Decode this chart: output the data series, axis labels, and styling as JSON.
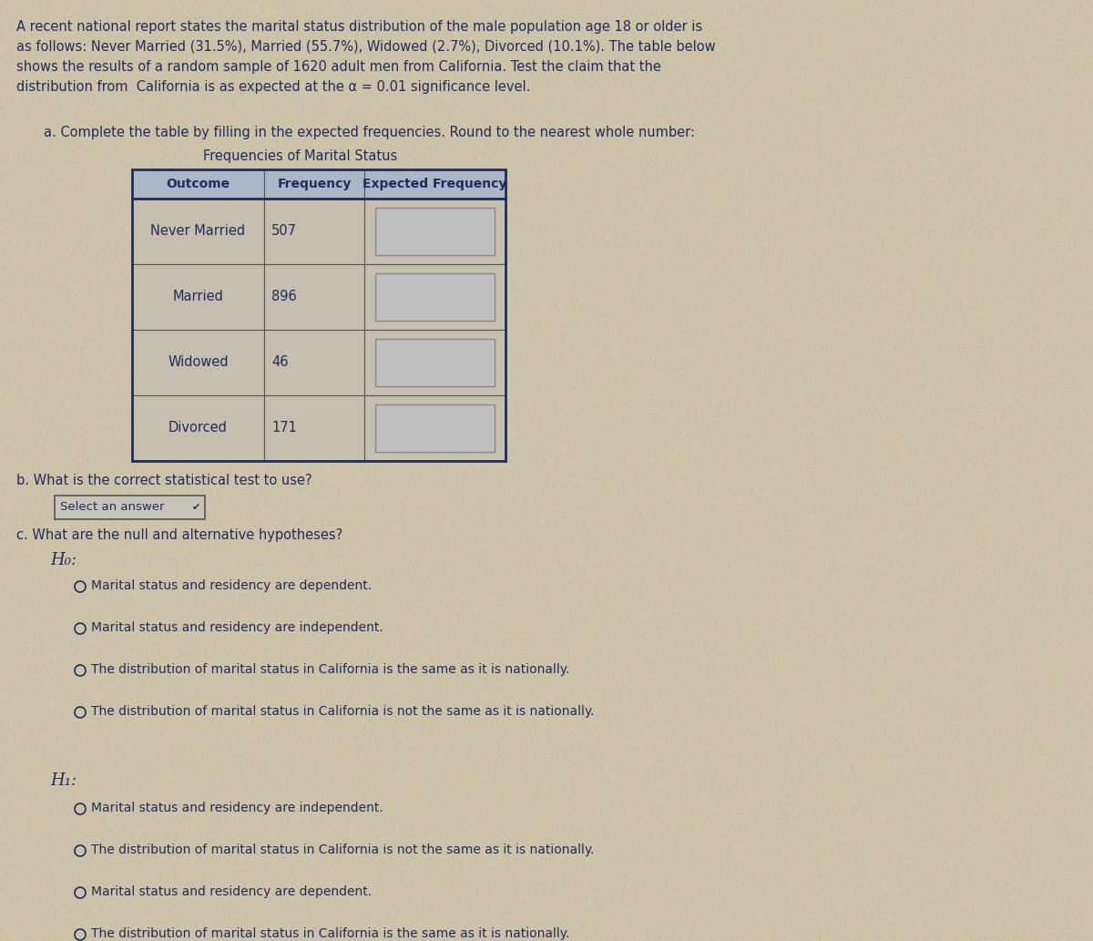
{
  "bg_color": "#cdc3aa",
  "text_color": "#1e2d5a",
  "intro_text_lines": [
    "A recent national report states the marital status distribution of the male population age 18 or older is",
    "as follows: Never Married (31.5%), Married (55.7%), Widowed (2.7%), Divorced (10.1%). The table below",
    "shows the results of a random sample of 1620 adult men from California. Test the claim that the",
    "distribution from  California is as expected at the α = 0.01 significance level."
  ],
  "part_a_label": "a. Complete the table by filling in the expected frequencies. Round to the nearest whole number:",
  "table_title": "Frequencies of Marital Status",
  "col_headers": [
    "Outcome",
    "Frequency",
    "Expected Frequency"
  ],
  "rows": [
    [
      "Never Married",
      "507",
      ""
    ],
    [
      "Married",
      "896",
      ""
    ],
    [
      "Widowed",
      "46",
      ""
    ],
    [
      "Divorced",
      "171",
      ""
    ]
  ],
  "part_b_label": "b. What is the correct statistical test to use?",
  "select_answer_label": "Select an answer",
  "part_c_label": "c. What are the null and alternative hypotheses?",
  "h0_label": "H₀:",
  "h0_options": [
    "Marital status and residency are dependent.",
    "Marital status and residency are independent.",
    "The distribution of marital status in California is the same as it is nationally.",
    "The distribution of marital status in California is not the same as it is nationally."
  ],
  "h1_label": "H₁:",
  "h1_options": [
    "Marital status and residency are independent.",
    "The distribution of marital status in California is not the same as it is nationally.",
    "Marital status and residency are dependent.",
    "The distribution of marital status in California is the same as it is nationally."
  ],
  "header_bg": "#adb5c8",
  "cell_bg": "#c5bfb0",
  "input_box_bg": "#bfbfbf",
  "input_box_border": "#888888",
  "table_outer_border": "#1e2d5a",
  "table_inner_border": "#555555",
  "select_box_bg": "#c8c4b8",
  "select_box_border": "#555555"
}
